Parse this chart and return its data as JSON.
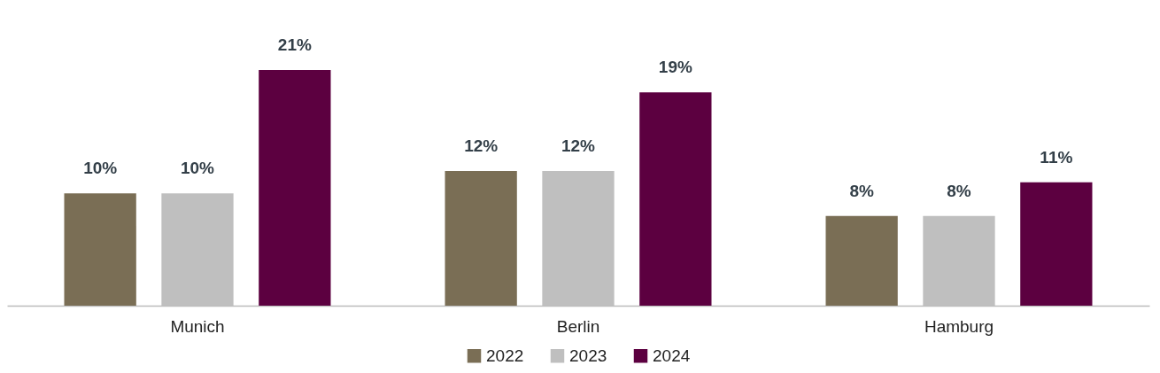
{
  "chart_data": {
    "type": "bar",
    "categories": [
      "Munich",
      "Berlin",
      "Hamburg"
    ],
    "series": [
      {
        "name": "2022",
        "color": "#7a6e55",
        "values": [
          10,
          12,
          8
        ],
        "value_labels": [
          "10%",
          "12%",
          "8%"
        ]
      },
      {
        "name": "2023",
        "color": "#bfbfbf",
        "values": [
          10,
          12,
          8
        ],
        "value_labels": [
          "10%",
          "12%",
          "8%"
        ]
      },
      {
        "name": "2024",
        "color": "#5c0040",
        "values": [
          21,
          19,
          11
        ],
        "value_labels": [
          "21%",
          "19%",
          "11%"
        ]
      }
    ],
    "legend": "bottom",
    "grid": false
  }
}
